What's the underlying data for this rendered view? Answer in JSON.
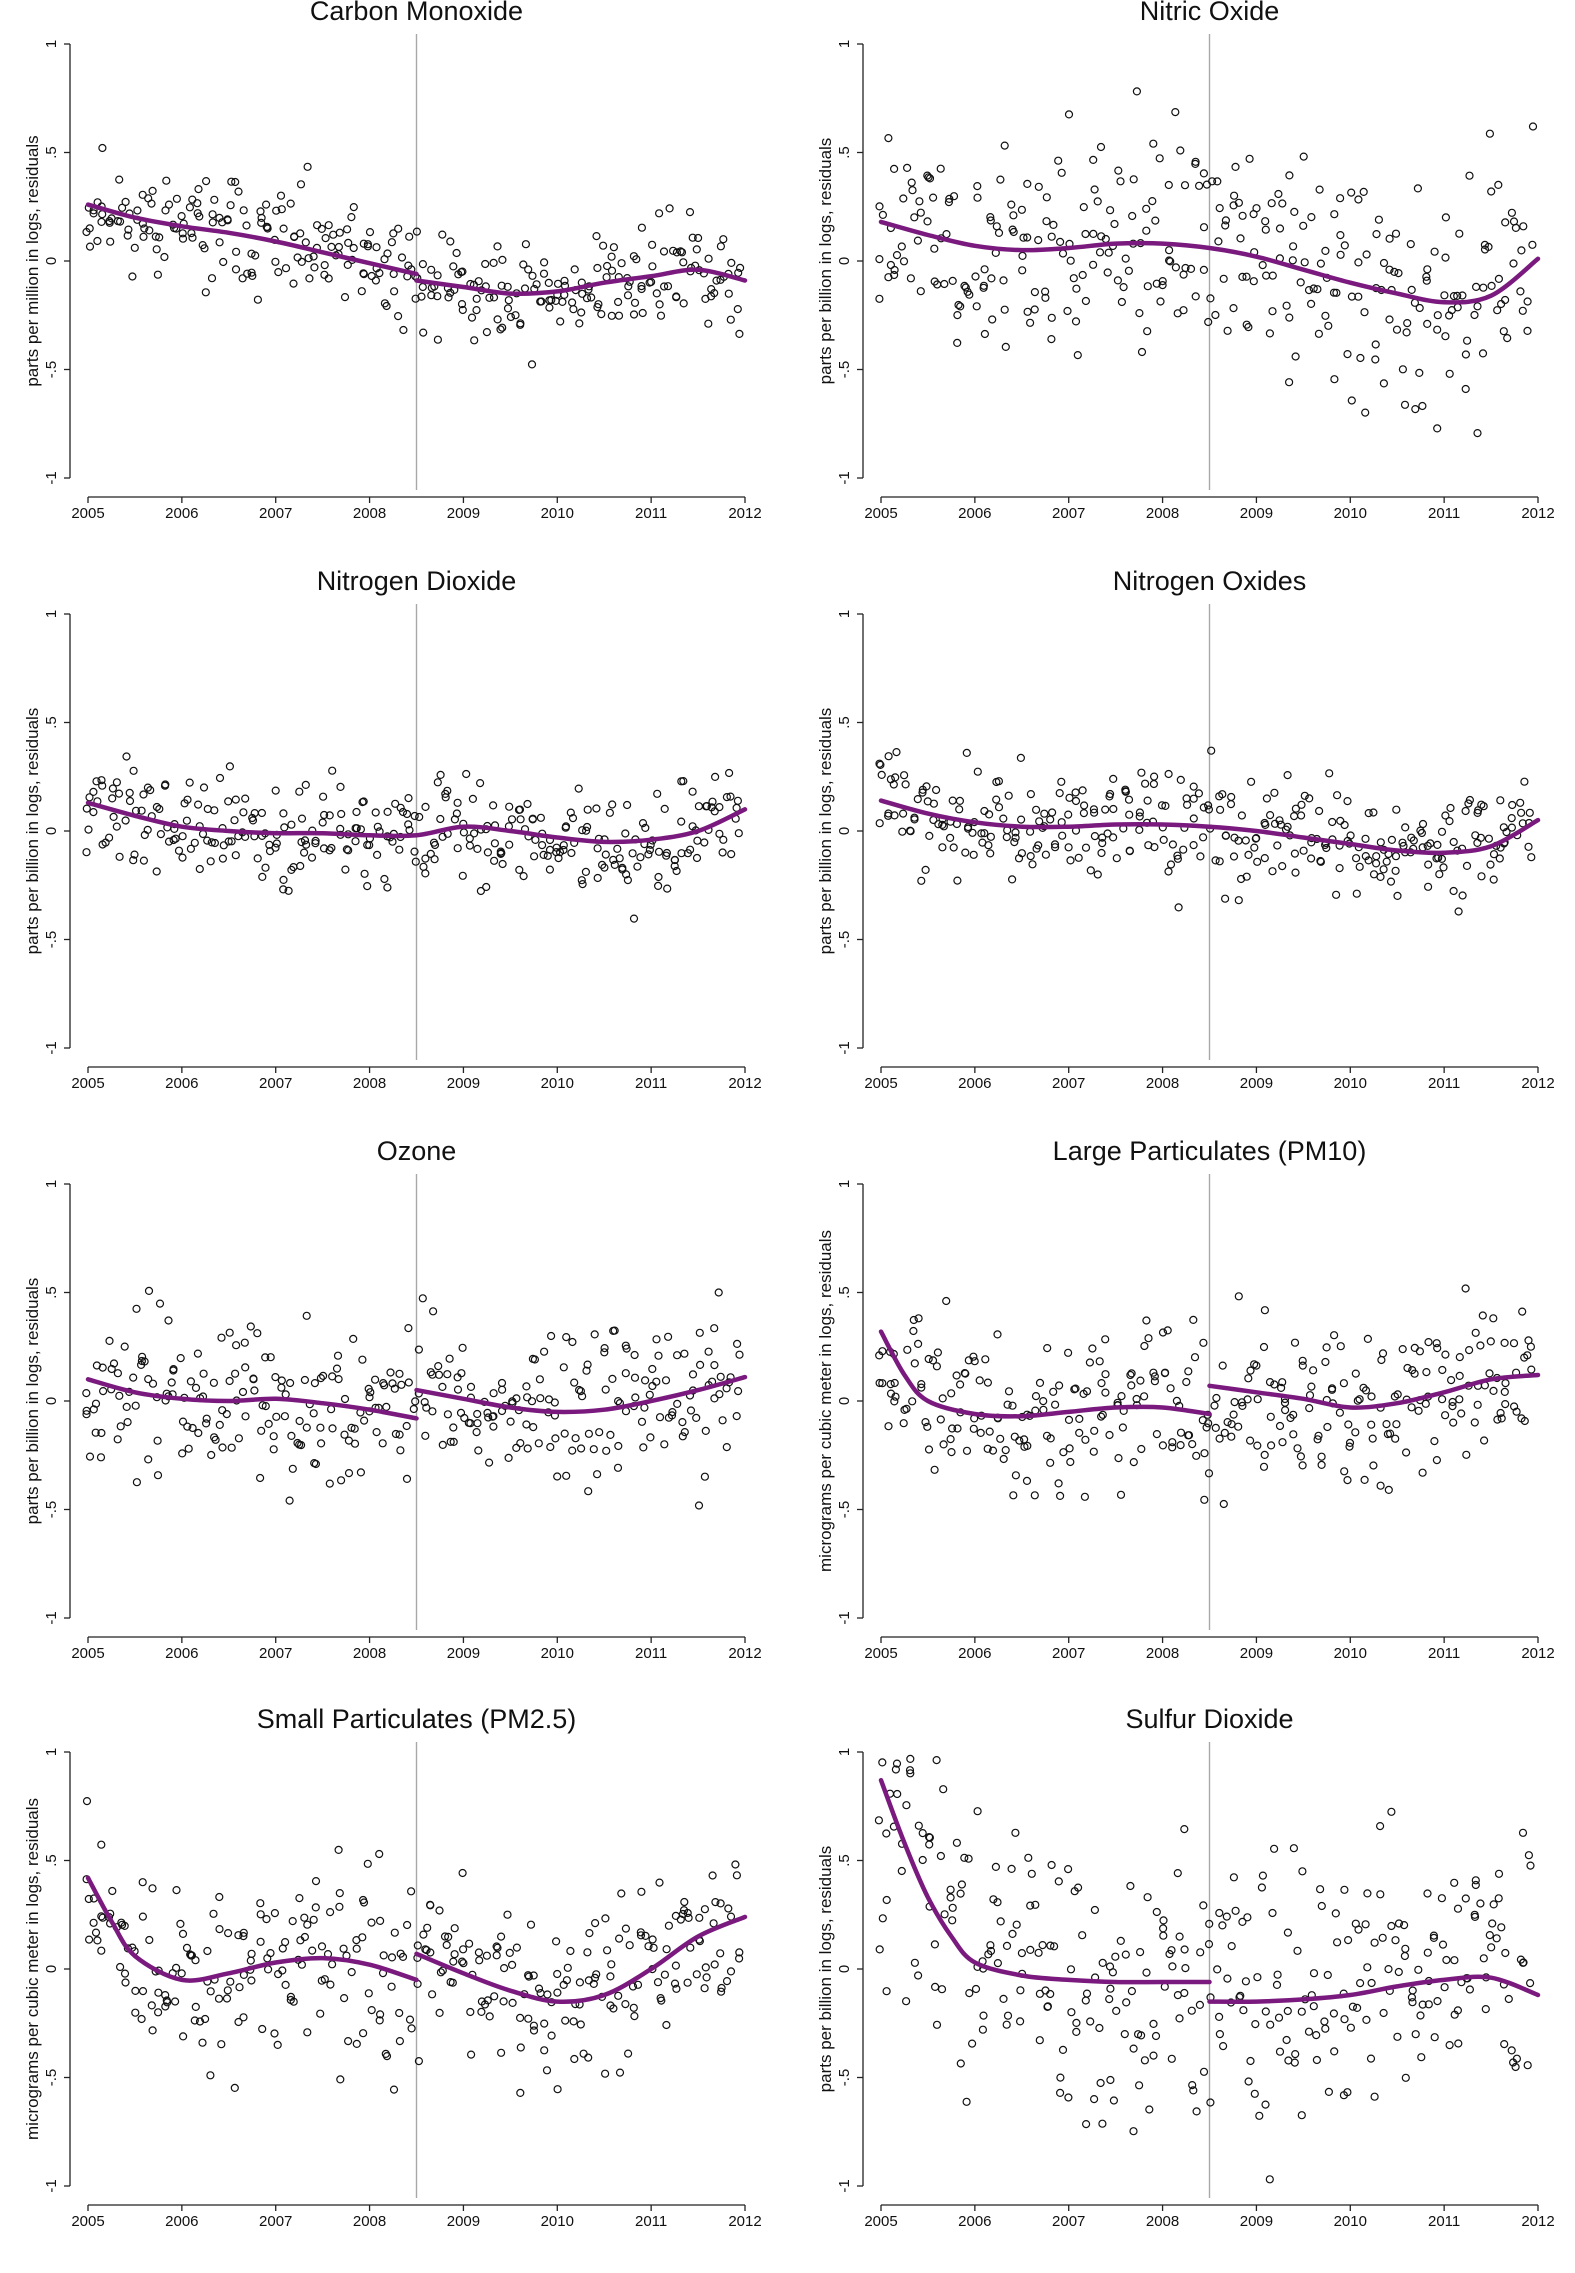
{
  "axis": {
    "x_ticks": [
      "2005",
      "2006",
      "2007",
      "2008",
      "2009",
      "2010",
      "2011",
      "2012"
    ],
    "x_range": [
      2005,
      2012
    ],
    "y_ticks": [
      "1",
      ".5",
      "0",
      "-.5",
      "-1"
    ],
    "y_range": [
      -1,
      1
    ],
    "break_year": 2008.5
  },
  "colors": {
    "fit": "#7a1a7e",
    "points": "#111111",
    "break_line": "#a8a8a8"
  },
  "chart_data": [
    {
      "type": "scatter",
      "title": "Carbon Monoxide",
      "ylabel": "parts per million in logs, residuals",
      "noise": 0.14,
      "seed": 11,
      "fit_pre": [
        [
          2005,
          0.26
        ],
        [
          2005.5,
          0.2
        ],
        [
          2006,
          0.16
        ],
        [
          2006.5,
          0.13
        ],
        [
          2007,
          0.09
        ],
        [
          2007.5,
          0.04
        ],
        [
          2008,
          -0.01
        ],
        [
          2008.5,
          -0.06
        ]
      ],
      "fit_post": [
        [
          2008.5,
          -0.09
        ],
        [
          2009,
          -0.12
        ],
        [
          2009.5,
          -0.15
        ],
        [
          2010,
          -0.14
        ],
        [
          2010.5,
          -0.1
        ],
        [
          2011,
          -0.07
        ],
        [
          2011.5,
          -0.04
        ],
        [
          2012,
          -0.09
        ]
      ]
    },
    {
      "type": "scatter",
      "title": "Nitric Oxide",
      "ylabel": "parts per billion in logs, residuals",
      "noise": 0.28,
      "seed": 23,
      "fit": [
        [
          2005,
          0.18
        ],
        [
          2005.5,
          0.12
        ],
        [
          2006,
          0.07
        ],
        [
          2006.5,
          0.05
        ],
        [
          2007,
          0.06
        ],
        [
          2007.5,
          0.08
        ],
        [
          2008,
          0.08
        ],
        [
          2008.5,
          0.06
        ],
        [
          2009,
          0.02
        ],
        [
          2009.5,
          -0.04
        ],
        [
          2010,
          -0.1
        ],
        [
          2010.5,
          -0.15
        ],
        [
          2011,
          -0.19
        ],
        [
          2011.5,
          -0.16
        ],
        [
          2012,
          0.01
        ]
      ]
    },
    {
      "type": "scatter",
      "title": "Nitrogen Dioxide",
      "ylabel": "parts per billion in logs, residuals",
      "noise": 0.13,
      "seed": 37,
      "fit": [
        [
          2005,
          0.13
        ],
        [
          2005.5,
          0.07
        ],
        [
          2006,
          0.02
        ],
        [
          2006.5,
          0.0
        ],
        [
          2007,
          -0.01
        ],
        [
          2007.5,
          -0.01
        ],
        [
          2008,
          -0.02
        ],
        [
          2008.5,
          -0.02
        ],
        [
          2009,
          0.02
        ],
        [
          2009.5,
          0.0
        ],
        [
          2010,
          -0.03
        ],
        [
          2010.5,
          -0.05
        ],
        [
          2011,
          -0.04
        ],
        [
          2011.5,
          0.0
        ],
        [
          2012,
          0.1
        ]
      ]
    },
    {
      "type": "scatter",
      "title": "Nitrogen Oxides",
      "ylabel": "parts per billion in logs, residuals",
      "noise": 0.14,
      "seed": 41,
      "fit": [
        [
          2005,
          0.14
        ],
        [
          2005.5,
          0.08
        ],
        [
          2006,
          0.04
        ],
        [
          2006.5,
          0.02
        ],
        [
          2007,
          0.02
        ],
        [
          2007.5,
          0.03
        ],
        [
          2008,
          0.03
        ],
        [
          2008.5,
          0.02
        ],
        [
          2009,
          0.0
        ],
        [
          2009.5,
          -0.03
        ],
        [
          2010,
          -0.06
        ],
        [
          2010.5,
          -0.09
        ],
        [
          2011,
          -0.1
        ],
        [
          2011.5,
          -0.07
        ],
        [
          2012,
          0.05
        ]
      ]
    },
    {
      "type": "scatter",
      "title": "Ozone",
      "ylabel": "parts per billion in logs, residuals",
      "noise": 0.2,
      "seed": 53,
      "fit_pre": [
        [
          2005,
          0.1
        ],
        [
          2005.5,
          0.04
        ],
        [
          2006,
          0.01
        ],
        [
          2006.5,
          0.0
        ],
        [
          2007,
          0.01
        ],
        [
          2007.5,
          -0.01
        ],
        [
          2008,
          -0.04
        ],
        [
          2008.5,
          -0.08
        ]
      ],
      "fit_post": [
        [
          2008.5,
          0.05
        ],
        [
          2009,
          0.01
        ],
        [
          2009.5,
          -0.03
        ],
        [
          2010,
          -0.05
        ],
        [
          2010.5,
          -0.04
        ],
        [
          2011,
          0.0
        ],
        [
          2011.5,
          0.05
        ],
        [
          2012,
          0.11
        ]
      ]
    },
    {
      "type": "scatter",
      "title": "Large Particulates (PM10)",
      "ylabel": "micrograms per cubic meter in logs, residuals",
      "noise": 0.2,
      "seed": 67,
      "fit_pre": [
        [
          2005,
          0.32
        ],
        [
          2005.25,
          0.12
        ],
        [
          2005.5,
          0.0
        ],
        [
          2006,
          -0.06
        ],
        [
          2006.5,
          -0.07
        ],
        [
          2007,
          -0.05
        ],
        [
          2007.5,
          -0.03
        ],
        [
          2008,
          -0.03
        ],
        [
          2008.5,
          -0.06
        ]
      ],
      "fit_post": [
        [
          2008.5,
          0.07
        ],
        [
          2009,
          0.04
        ],
        [
          2009.5,
          0.01
        ],
        [
          2010,
          -0.03
        ],
        [
          2010.5,
          -0.01
        ],
        [
          2011,
          0.04
        ],
        [
          2011.5,
          0.1
        ],
        [
          2012,
          0.12
        ]
      ]
    },
    {
      "type": "scatter",
      "title": "Small Particulates (PM2.5)",
      "ylabel": "micrograms per cubic meter in logs, residuals",
      "noise": 0.23,
      "seed": 79,
      "fit_pre": [
        [
          2005,
          0.42
        ],
        [
          2005.25,
          0.22
        ],
        [
          2005.5,
          0.06
        ],
        [
          2006,
          -0.05
        ],
        [
          2006.5,
          -0.02
        ],
        [
          2007,
          0.03
        ],
        [
          2007.5,
          0.05
        ],
        [
          2008,
          0.02
        ],
        [
          2008.5,
          -0.05
        ]
      ],
      "fit_post": [
        [
          2008.5,
          0.07
        ],
        [
          2009,
          -0.02
        ],
        [
          2009.5,
          -0.1
        ],
        [
          2010,
          -0.15
        ],
        [
          2010.5,
          -0.12
        ],
        [
          2011,
          0.0
        ],
        [
          2011.5,
          0.15
        ],
        [
          2012,
          0.24
        ]
      ]
    },
    {
      "type": "scatter",
      "title": "Sulfur Dioxide",
      "ylabel": "parts per billion in logs, residuals",
      "noise": 0.36,
      "seed": 97,
      "fit_pre": [
        [
          2005,
          0.87
        ],
        [
          2005.25,
          0.58
        ],
        [
          2005.5,
          0.33
        ],
        [
          2005.75,
          0.15
        ],
        [
          2006,
          0.03
        ],
        [
          2006.5,
          -0.03
        ],
        [
          2007,
          -0.05
        ],
        [
          2007.5,
          -0.06
        ],
        [
          2008,
          -0.06
        ],
        [
          2008.5,
          -0.06
        ]
      ],
      "fit_post": [
        [
          2008.5,
          -0.15
        ],
        [
          2009,
          -0.15
        ],
        [
          2009.5,
          -0.14
        ],
        [
          2010,
          -0.12
        ],
        [
          2010.5,
          -0.08
        ],
        [
          2011,
          -0.05
        ],
        [
          2011.5,
          -0.04
        ],
        [
          2012,
          -0.12
        ]
      ]
    }
  ]
}
